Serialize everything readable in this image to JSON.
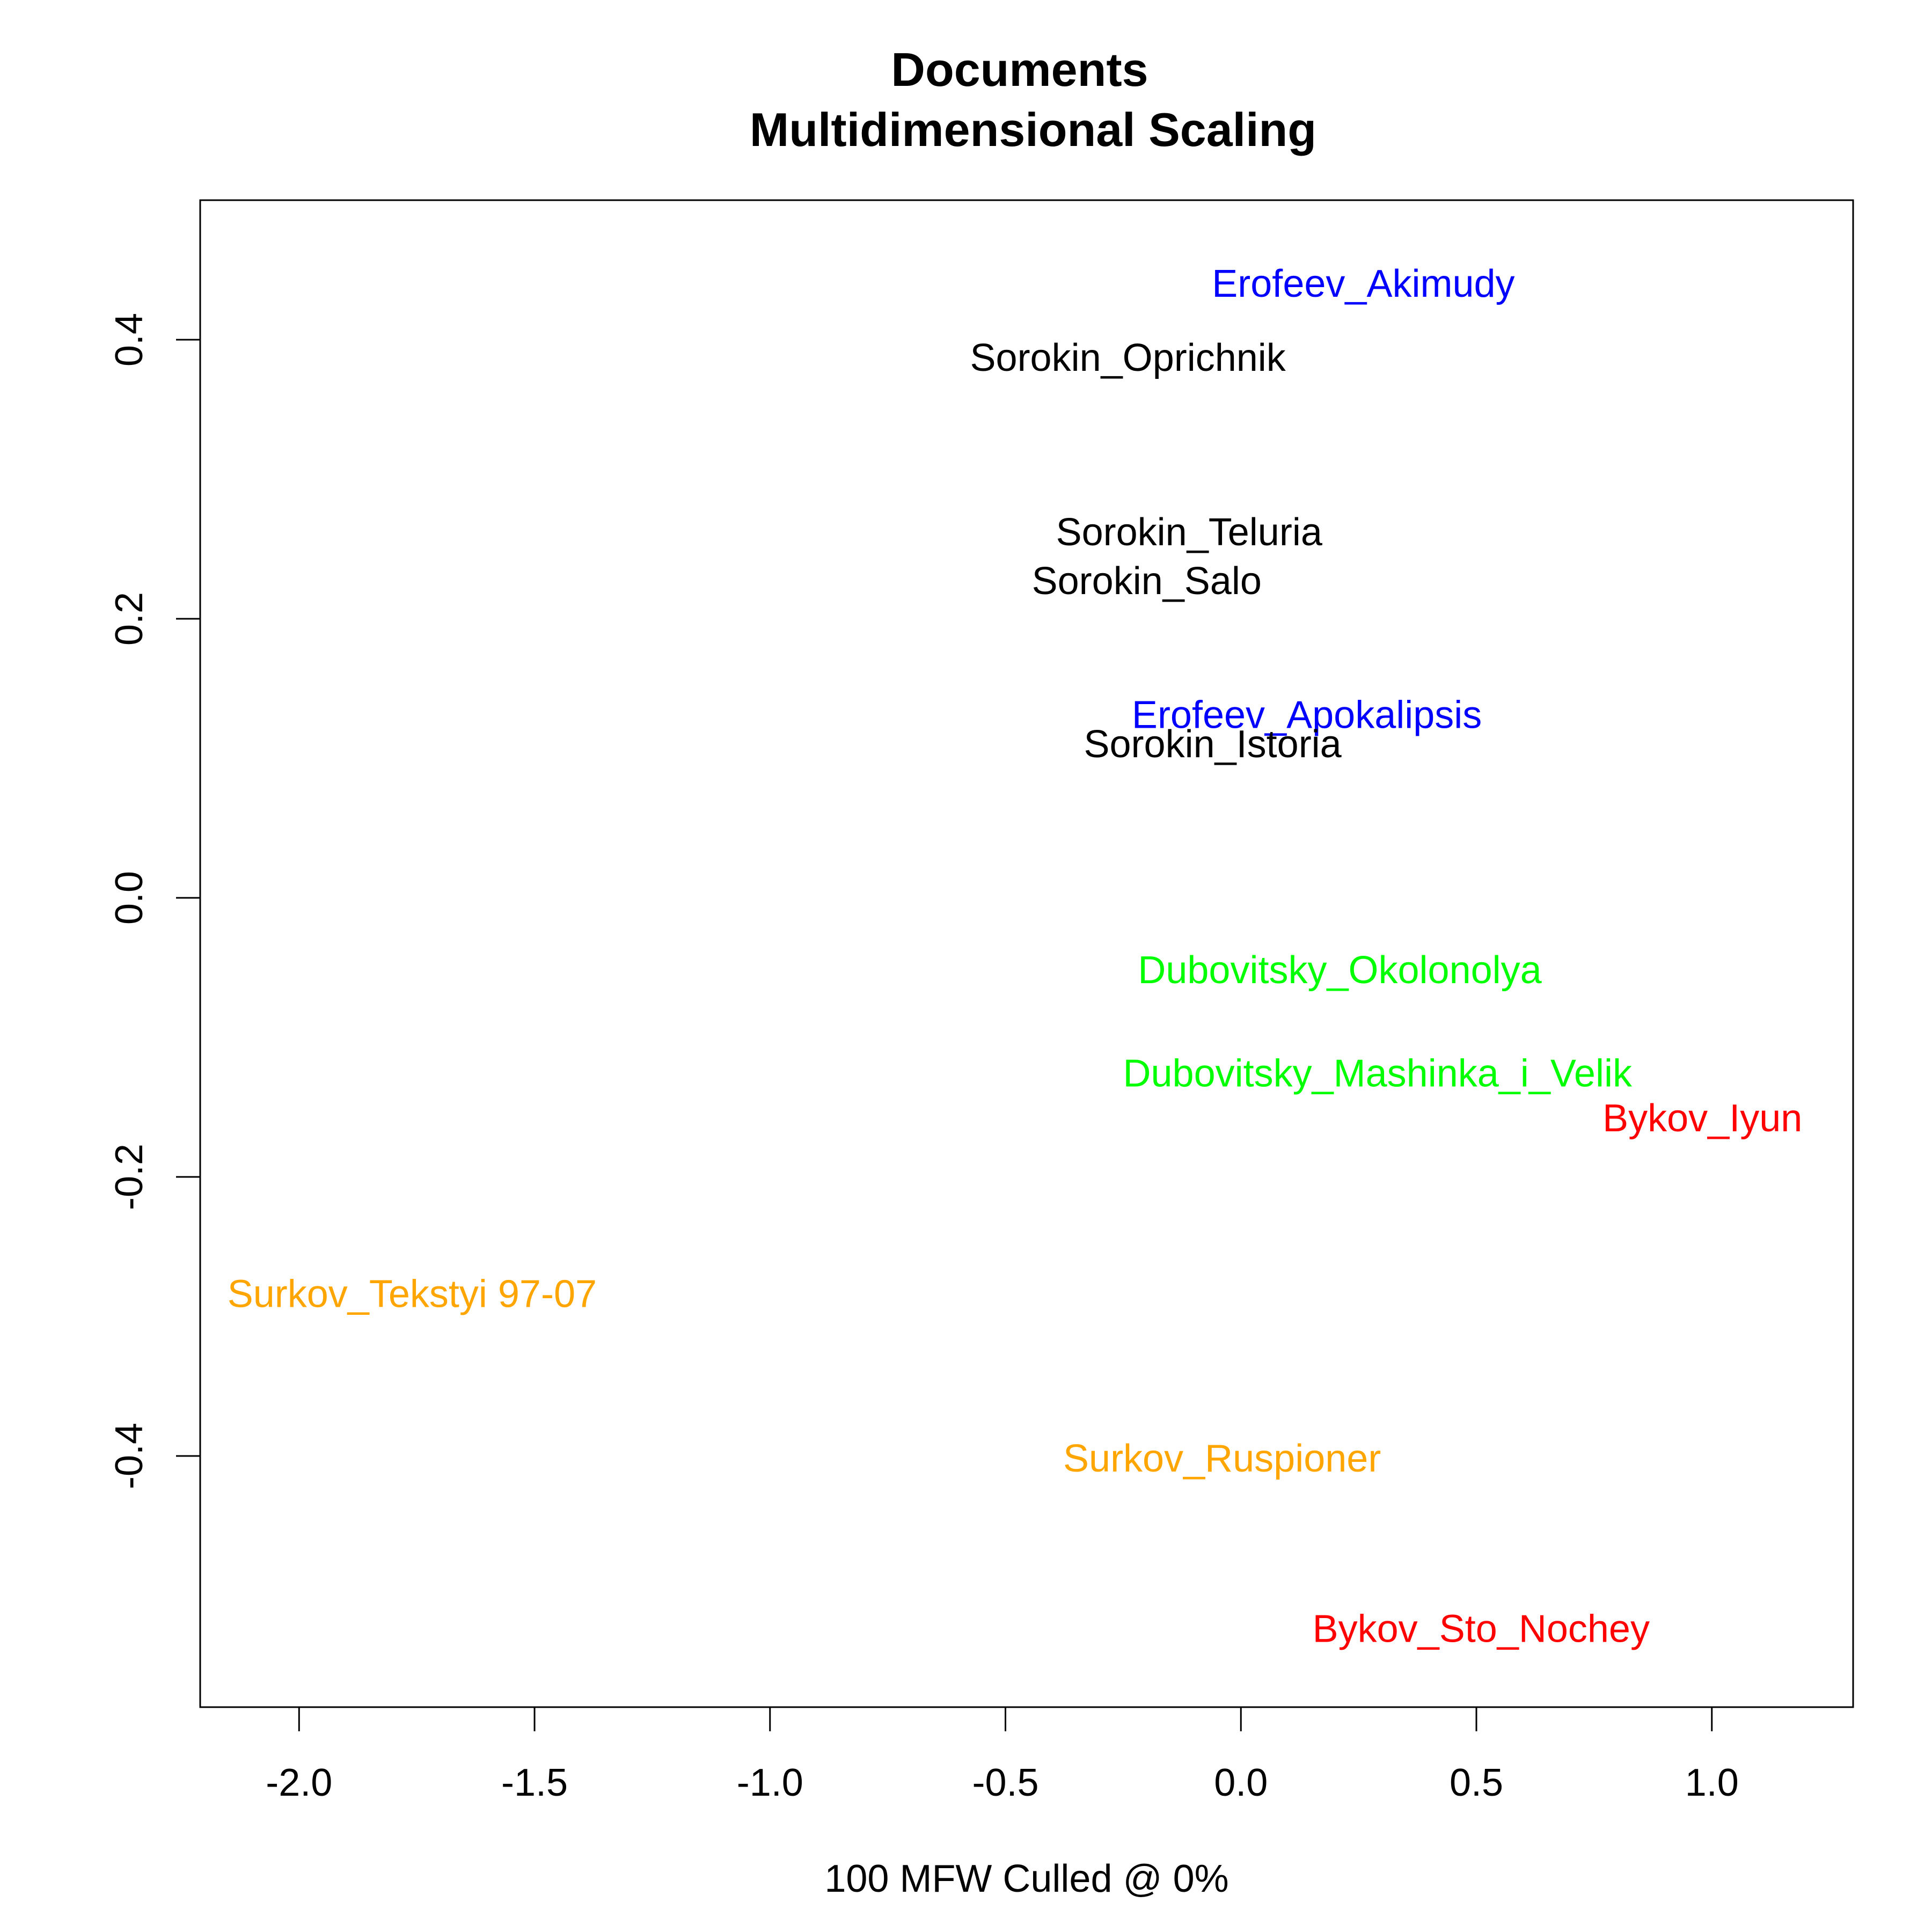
{
  "chart_data": {
    "type": "scatter",
    "title": "Documents",
    "subtitle": "Multidimensional Scaling",
    "xlabel": "100 MFW  Culled @ 0%",
    "ylabel": "",
    "xlim": [
      -2.21,
      1.3
    ],
    "ylim": [
      -0.58,
      0.5
    ],
    "x_ticks": [
      -2.0,
      -1.5,
      -1.0,
      -0.5,
      0.0,
      0.5,
      1.0
    ],
    "x_tick_labels": [
      "-2.0",
      "-1.5",
      "-1.0",
      "-0.5",
      "0.0",
      "0.5",
      "1.0"
    ],
    "y_ticks": [
      -0.4,
      -0.2,
      0.0,
      0.2,
      0.4
    ],
    "y_tick_labels": [
      "-0.4",
      "-0.2",
      "0.0",
      "0.2",
      "0.4"
    ],
    "grid": false,
    "legend": "none",
    "colors": {
      "Sorokin": "#000000",
      "Erofeev": "#0000ff",
      "Dubovitsky": "#00ff00",
      "Bykov": "#ff0000",
      "Surkov": "#ffa500"
    },
    "points": [
      {
        "label": "Erofeev_Akimudy",
        "x": 0.26,
        "y": 0.44,
        "color": "#0000ff"
      },
      {
        "label": "Sorokin_Oprichnik",
        "x": -0.24,
        "y": 0.387,
        "color": "#000000"
      },
      {
        "label": "Sorokin_Teluria",
        "x": -0.11,
        "y": 0.262,
        "color": "#000000"
      },
      {
        "label": "Sorokin_Salo",
        "x": -0.2,
        "y": 0.227,
        "color": "#000000"
      },
      {
        "label": "Erofeev_Apokalipsis",
        "x": 0.14,
        "y": 0.131,
        "color": "#0000ff"
      },
      {
        "label": "Sorokin_Istoria",
        "x": -0.06,
        "y": 0.11,
        "color": "#000000"
      },
      {
        "label": "Dubovitsky_Okolonolya",
        "x": 0.21,
        "y": -0.052,
        "color": "#00ff00"
      },
      {
        "label": "Dubovitsky_Mashinka_i_Velik",
        "x": 0.29,
        "y": -0.126,
        "color": "#00ff00"
      },
      {
        "label": "Bykov_Iyun",
        "x": 0.98,
        "y": -0.158,
        "color": "#ff0000"
      },
      {
        "label": "Surkov_Tekstyi 97-07",
        "x": -1.76,
        "y": -0.284,
        "color": "#ffa500"
      },
      {
        "label": "Surkov_Ruspioner",
        "x": -0.04,
        "y": -0.402,
        "color": "#ffa500"
      },
      {
        "label": "Bykov_Sto_Nochey",
        "x": 0.51,
        "y": -0.524,
        "color": "#ff0000"
      }
    ]
  }
}
